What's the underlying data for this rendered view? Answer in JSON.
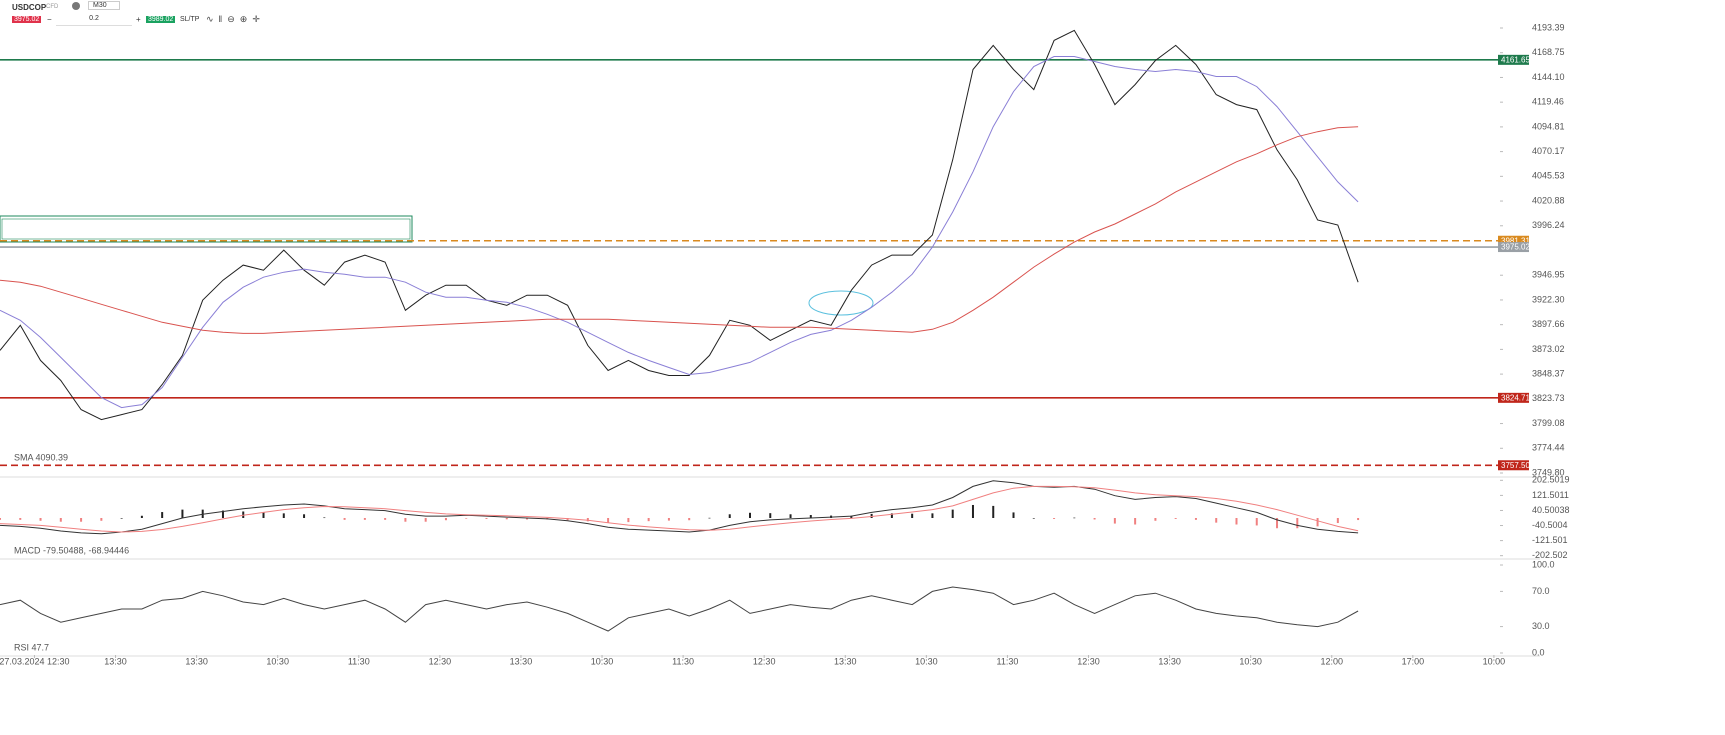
{
  "toolbar": {
    "symbol": "USDCOP",
    "symbol_type": "CFD",
    "interval": "M30",
    "sell": "3975.02",
    "volume": "0.2",
    "buy": "3989.02",
    "sltp": "SL/TP"
  },
  "chart_data": [
    {
      "type": "line",
      "xlim": [
        0,
        74
      ],
      "ylim": [
        3746.8,
        4221.3
      ],
      "yticks": [
        4193.39,
        4168.75,
        {
          "value": 4144.1,
          "label": "4144.10"
        },
        4119.46,
        4094.81,
        4070.17,
        4045.53,
        4020.88,
        3996.24,
        3946.95,
        {
          "value": 3922.3,
          "label": "3922.30"
        },
        3897.66,
        3873.02,
        3848.37,
        3823.73,
        3799.08,
        3774.44,
        {
          "value": 3749.8,
          "label": "3749.80"
        }
      ],
      "levels": [
        {
          "value": 4161.65,
          "color": "#1e7a4c",
          "style": "solid"
        },
        {
          "value": 3981.31,
          "color": "#d98a1f",
          "style": "dashed"
        },
        {
          "value": 3975.02,
          "color": "#9aa0a6",
          "style": "solid"
        },
        {
          "value": 3824.71,
          "color": "#c0261b",
          "style": "solid"
        },
        {
          "value": 3757.5,
          "label": "3757.50",
          "color": "#c0261b",
          "style": "dashed"
        }
      ],
      "series": [
        {
          "color": "#222222",
          "values": [
            3872,
            3897,
            3862,
            3842,
            3813,
            3803,
            3808,
            3813,
            3838,
            3867,
            3922,
            3942,
            3957,
            3952,
            3972,
            3952,
            3937,
            3960,
            3967,
            3960,
            3912,
            3927,
            3937,
            3937,
            3922,
            3917,
            3927,
            3927,
            3917,
            3877,
            3852,
            3862,
            3852,
            3847,
            3847,
            3867,
            3902,
            3897,
            3882,
            3892,
            3902,
            3897,
            3932,
            3957,
            3967,
            3967,
            3987,
            4062,
            4152,
            4176,
            4152,
            4132,
            4181,
            4191,
            4157,
            4117,
            4137,
            4161,
            4176,
            4157,
            4127,
            4117,
            4112,
            4072,
            4042,
            4002,
            3997,
            3940
          ]
        },
        {
          "color": "#8a7fd6",
          "values": [
            3912,
            3902,
            3885,
            3865,
            3845,
            3825,
            3815,
            3818,
            3835,
            3865,
            3895,
            3920,
            3935,
            3945,
            3950,
            3953,
            3950,
            3948,
            3945,
            3945,
            3940,
            3930,
            3925,
            3925,
            3922,
            3920,
            3915,
            3908,
            3900,
            3890,
            3880,
            3870,
            3862,
            3855,
            3848,
            3850,
            3855,
            3860,
            3870,
            3880,
            3888,
            3892,
            3902,
            3915,
            3930,
            3948,
            3975,
            4010,
            4050,
            4095,
            4130,
            4155,
            4165,
            4165,
            4160,
            4155,
            4152,
            4150,
            4152,
            4150,
            4145,
            4145,
            4135,
            4115,
            4090,
            4065,
            4040,
            4020
          ]
        },
        {
          "name": "SMA 4090.39",
          "color": "#d9534f",
          "values": [
            3942,
            3940,
            3936,
            3930,
            3924,
            3918,
            3912,
            3906,
            3900,
            3896,
            3892,
            3890,
            3889,
            3889,
            3890,
            3891,
            3892,
            3893,
            3894,
            3895,
            3896,
            3897,
            3898,
            3899,
            3900,
            3901,
            3902,
            3903,
            3903,
            3903,
            3903,
            3902,
            3901,
            3900,
            3899,
            3898,
            3897,
            3896,
            3895,
            3895,
            3895,
            3894,
            3893,
            3892,
            3891,
            3890,
            3893,
            3900,
            3912,
            3925,
            3940,
            3955,
            3968,
            3980,
            3990,
            3998,
            4008,
            4018,
            4030,
            4040,
            4050,
            4060,
            4068,
            4077,
            4085,
            4090,
            4094,
            4095
          ]
        }
      ]
    },
    {
      "type": "line",
      "title": "MACD -79.50488, -68.94446",
      "xlim": [
        0,
        74
      ],
      "ylim": [
        -215,
        215
      ],
      "yticks": [
        202.5019,
        121.5011,
        40.50038,
        -40.5004,
        -121.501,
        -202.502
      ],
      "series": [
        {
          "type": "bar",
          "color": "#222222",
          "negative_color": "#f08080",
          "values": [
            -10,
            -10,
            -15,
            -20,
            -20,
            -15,
            0,
            12,
            32,
            45,
            45,
            40,
            35,
            30,
            25,
            20,
            3,
            -10,
            -10,
            -10,
            -20,
            -20,
            -12,
            -3,
            -5,
            -7,
            -8,
            -8,
            -12,
            -18,
            -25,
            -22,
            -17,
            -14,
            -12,
            1,
            20,
            28,
            26,
            20,
            16,
            13,
            12,
            22,
            25,
            23,
            25,
            45,
            70,
            65,
            30,
            0,
            -5,
            2,
            -8,
            -30,
            -35,
            -15,
            -5,
            -10,
            -25,
            -35,
            -40,
            -55,
            -55,
            -45,
            -27,
            -11
          ]
        },
        {
          "color": "#333333",
          "values": [
            -40,
            -45,
            -55,
            -70,
            -80,
            -85,
            -75,
            -60,
            -30,
            0,
            20,
            35,
            50,
            60,
            70,
            75,
            65,
            50,
            45,
            40,
            20,
            10,
            10,
            15,
            10,
            5,
            0,
            -5,
            -15,
            -30,
            -50,
            -60,
            -65,
            -70,
            -75,
            -65,
            -40,
            -20,
            -10,
            -5,
            0,
            5,
            10,
            30,
            45,
            55,
            70,
            110,
            170,
            200,
            190,
            170,
            165,
            170,
            155,
            120,
            100,
            110,
            115,
            105,
            80,
            55,
            30,
            -10,
            -40,
            -60,
            -72,
            -80
          ]
        },
        {
          "color": "#f08080",
          "values": [
            -30,
            -35,
            -40,
            -50,
            -60,
            -70,
            -75,
            -72,
            -62,
            -45,
            -25,
            -5,
            15,
            30,
            45,
            55,
            62,
            60,
            55,
            50,
            40,
            30,
            22,
            18,
            15,
            12,
            8,
            3,
            -3,
            -12,
            -25,
            -38,
            -48,
            -56,
            -63,
            -66,
            -60,
            -48,
            -36,
            -25,
            -16,
            -8,
            -2,
            8,
            20,
            32,
            45,
            65,
            100,
            135,
            160,
            170,
            170,
            168,
            163,
            150,
            135,
            125,
            120,
            115,
            105,
            90,
            70,
            45,
            15,
            -15,
            -45,
            -69
          ]
        }
      ]
    },
    {
      "type": "line",
      "title": "RSI 47.7",
      "xlim": [
        0,
        74
      ],
      "ylim": [
        -2.3,
        105.7
      ],
      "yticks": [
        {
          "value": 100,
          "label": "100.0"
        },
        {
          "value": 70,
          "label": "70.0"
        },
        {
          "value": 30,
          "label": "30.0"
        },
        {
          "value": 0,
          "label": "0.0"
        }
      ],
      "xticks": [
        {
          "value": 1.7,
          "label": "27.03.2024 12:30"
        },
        {
          "value": 5.7,
          "label": "13:30"
        },
        {
          "value": 9.7,
          "label": "13:30"
        },
        {
          "value": 13.7,
          "label": "10:30"
        },
        {
          "value": 17.7,
          "label": "11:30"
        },
        {
          "value": 21.7,
          "label": "12:30"
        },
        {
          "value": 25.7,
          "label": "13:30"
        },
        {
          "value": 29.7,
          "label": "10:30"
        },
        {
          "value": 33.7,
          "label": "11:30"
        },
        {
          "value": 37.7,
          "label": "12:30"
        },
        {
          "value": 41.7,
          "label": "13:30"
        },
        {
          "value": 45.7,
          "label": "10:30"
        },
        {
          "value": 49.7,
          "label": "11:30"
        },
        {
          "value": 53.7,
          "label": "12:30"
        },
        {
          "value": 57.7,
          "label": "13:30"
        },
        {
          "value": 61.7,
          "label": "10:30"
        },
        {
          "value": 65.7,
          "label": "12:00"
        },
        {
          "value": 69.7,
          "label": "17:00"
        },
        {
          "value": 73.7,
          "label": "10:00"
        }
      ],
      "series": [
        {
          "color": "#444444",
          "values": [
            55,
            60,
            45,
            35,
            40,
            45,
            50,
            50,
            60,
            62,
            70,
            65,
            58,
            55,
            62,
            55,
            50,
            55,
            60,
            50,
            35,
            55,
            60,
            55,
            50,
            55,
            58,
            52,
            45,
            35,
            25,
            40,
            45,
            50,
            42,
            50,
            60,
            45,
            50,
            55,
            52,
            50,
            60,
            65,
            60,
            55,
            70,
            75,
            72,
            68,
            55,
            60,
            68,
            55,
            45,
            55,
            65,
            68,
            60,
            50,
            45,
            42,
            40,
            35,
            32,
            30,
            35,
            47.7
          ]
        }
      ]
    }
  ]
}
